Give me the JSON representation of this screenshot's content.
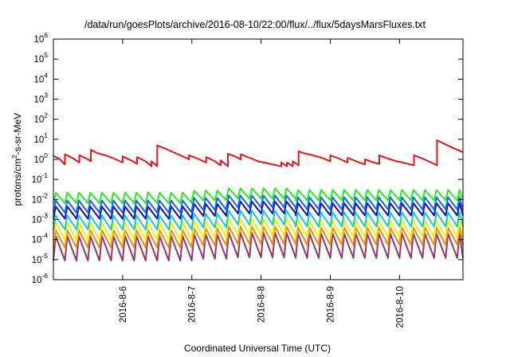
{
  "chart_data": {
    "type": "line",
    "title": "/data/run/goesPlots/archive/2016-08-10/22:00/flux/../flux/5daysMarsFluxes.txt",
    "xlabel": "Coordinated Universal Time (UTC)",
    "ylabel": {
      "base": "protons/cm",
      "sup": "2",
      "rest": "-s-sr-MeV"
    },
    "x_range": [
      "2016-08-05T00:00",
      "2016-08-10T22:00"
    ],
    "x_ticks": [
      "2016-8-6",
      "2016-8-7",
      "2016-8-8",
      "2016-8-9",
      "2016-8-10"
    ],
    "y_scale": "log",
    "ylim": [
      1e-06,
      1000000.0
    ],
    "y_ticks": [
      {
        "base": "10",
        "exp": "-6",
        "value": 1e-06
      },
      {
        "base": "10",
        "exp": "-5",
        "value": 1e-05
      },
      {
        "base": "10",
        "exp": "-4",
        "value": 0.0001
      },
      {
        "base": "10",
        "exp": "-3",
        "value": 0.001
      },
      {
        "base": "10",
        "exp": "-2",
        "value": 0.01
      },
      {
        "base": "10",
        "exp": "-1",
        "value": 0.1
      },
      {
        "base": "10",
        "exp": "0",
        "value": 1
      },
      {
        "base": "10",
        "exp": "1",
        "value": 10
      },
      {
        "base": "10",
        "exp": "2",
        "value": 100
      },
      {
        "base": "10",
        "exp": "3",
        "value": 1000
      },
      {
        "base": "10",
        "exp": "4",
        "value": 10000
      },
      {
        "base": "10",
        "exp": "5",
        "value": 100000
      },
      {
        "base": "10",
        "exp": "6",
        "value": 1000000
      }
    ],
    "grid": false,
    "legend": "none",
    "series": [
      {
        "color": "#ee1111",
        "points": [
          [
            "2016-08-05T00:00",
            1.5
          ],
          [
            "2016-08-05T02:00",
            1.1
          ],
          [
            "2016-08-05T04:00",
            0.55
          ],
          [
            "2016-08-05T04:00",
            1.8
          ],
          [
            "2016-08-05T06:30",
            1.2
          ],
          [
            "2016-08-05T09:00",
            0.7
          ],
          [
            "2016-08-05T09:00",
            1.6
          ],
          [
            "2016-08-05T11:30",
            1.1
          ],
          [
            "2016-08-05T13:00",
            0.8
          ],
          [
            "2016-08-05T13:00",
            3.0
          ],
          [
            "2016-08-05T15:00",
            2.1
          ],
          [
            "2016-08-05T18:00",
            1.6
          ],
          [
            "2016-08-05T21:00",
            1.1
          ],
          [
            "2016-08-06T00:00",
            0.7
          ],
          [
            "2016-08-06T00:00",
            1.4
          ],
          [
            "2016-08-06T03:00",
            0.9
          ],
          [
            "2016-08-06T05:00",
            0.6
          ],
          [
            "2016-08-06T05:00",
            1.3
          ],
          [
            "2016-08-06T08:00",
            0.8
          ],
          [
            "2016-08-06T10:00",
            0.45
          ],
          [
            "2016-08-06T10:00",
            0.8
          ],
          [
            "2016-08-06T12:00",
            0.45
          ],
          [
            "2016-08-06T12:00",
            5.0
          ],
          [
            "2016-08-06T14:00",
            3.8
          ],
          [
            "2016-08-06T17:00",
            2.5
          ],
          [
            "2016-08-06T20:00",
            1.6
          ],
          [
            "2016-08-06T23:00",
            1.0
          ],
          [
            "2016-08-06T23:00",
            1.6
          ],
          [
            "2016-08-07T02:00",
            1.1
          ],
          [
            "2016-08-07T05:00",
            0.7
          ],
          [
            "2016-08-07T05:00",
            1.3
          ],
          [
            "2016-08-07T08:00",
            0.8
          ],
          [
            "2016-08-07T10:00",
            0.5
          ],
          [
            "2016-08-07T10:00",
            0.9
          ],
          [
            "2016-08-07T12:30",
            0.45
          ],
          [
            "2016-08-07T12:30",
            1.9
          ],
          [
            "2016-08-07T15:00",
            1.4
          ],
          [
            "2016-08-07T17:00",
            1.0
          ],
          [
            "2016-08-07T17:00",
            1.8
          ],
          [
            "2016-08-07T20:00",
            1.2
          ],
          [
            "2016-08-07T23:00",
            0.8
          ],
          [
            "2016-08-08T03:00",
            0.6
          ],
          [
            "2016-08-08T07:00",
            0.45
          ],
          [
            "2016-08-08T07:00",
            0.7
          ],
          [
            "2016-08-08T09:00",
            0.45
          ],
          [
            "2016-08-08T09:00",
            0.7
          ],
          [
            "2016-08-08T11:00",
            0.45
          ],
          [
            "2016-08-08T11:00",
            0.8
          ],
          [
            "2016-08-08T13:00",
            0.5
          ],
          [
            "2016-08-08T13:00",
            2.5
          ],
          [
            "2016-08-08T15:00",
            2.0
          ],
          [
            "2016-08-08T18:00",
            1.6
          ],
          [
            "2016-08-08T21:00",
            1.2
          ],
          [
            "2016-08-09T00:00",
            0.8
          ],
          [
            "2016-08-09T00:00",
            1.6
          ],
          [
            "2016-08-09T03:00",
            1.1
          ],
          [
            "2016-08-09T06:00",
            0.7
          ],
          [
            "2016-08-09T06:00",
            1.2
          ],
          [
            "2016-08-09T09:00",
            0.8
          ],
          [
            "2016-08-09T12:00",
            0.55
          ],
          [
            "2016-08-09T12:00",
            1.0
          ],
          [
            "2016-08-09T15:00",
            0.7
          ],
          [
            "2016-08-09T17:00",
            0.6
          ],
          [
            "2016-08-09T17:00",
            1.6
          ],
          [
            "2016-08-09T20:00",
            1.1
          ],
          [
            "2016-08-09T23:00",
            0.8
          ],
          [
            "2016-08-10T02:00",
            0.65
          ],
          [
            "2016-08-10T05:00",
            0.5
          ],
          [
            "2016-08-10T05:00",
            1.6
          ],
          [
            "2016-08-10T08:00",
            1.1
          ],
          [
            "2016-08-10T11:00",
            0.7
          ],
          [
            "2016-08-10T13:00",
            0.5
          ],
          [
            "2016-08-10T13:00",
            9.0
          ],
          [
            "2016-08-10T16:00",
            5.5
          ],
          [
            "2016-08-10T19:00",
            3.5
          ],
          [
            "2016-08-10T22:00",
            2.3
          ]
        ]
      },
      {
        "color": "#22ee22",
        "shape": "sawtooth",
        "sawtooth": {
          "period_hours": 4,
          "rise_fraction": 0.2,
          "segments": [
            {
              "start": "2016-08-05T00:00",
              "end": "2016-08-07T00:00",
              "hi": 0.022,
              "lo": 0.0065
            },
            {
              "start": "2016-08-07T00:00",
              "end": "2016-08-07T14:00",
              "hi": 0.028,
              "lo": 0.009
            },
            {
              "start": "2016-08-07T14:00",
              "end": "2016-08-08T14:00",
              "hi": 0.036,
              "lo": 0.011
            },
            {
              "start": "2016-08-08T14:00",
              "end": "2016-08-10T22:00",
              "hi": 0.03,
              "lo": 0.009
            }
          ]
        }
      },
      {
        "color": "#1166ee",
        "shape": "sawtooth",
        "sawtooth": {
          "period_hours": 4,
          "rise_fraction": 0.2,
          "segments": [
            {
              "start": "2016-08-05T00:00",
              "end": "2016-08-07T00:00",
              "hi": 0.009,
              "lo": 0.0022
            },
            {
              "start": "2016-08-07T00:00",
              "end": "2016-08-07T14:00",
              "hi": 0.012,
              "lo": 0.003
            },
            {
              "start": "2016-08-07T14:00",
              "end": "2016-08-08T14:00",
              "hi": 0.016,
              "lo": 0.004
            },
            {
              "start": "2016-08-08T14:00",
              "end": "2016-08-10T22:00",
              "hi": 0.013,
              "lo": 0.0032
            }
          ]
        }
      },
      {
        "color": "#1111bb",
        "shape": "sawtooth",
        "sawtooth": {
          "period_hours": 4,
          "rise_fraction": 0.2,
          "segments": [
            {
              "start": "2016-08-05T00:00",
              "end": "2016-08-07T00:00",
              "hi": 0.0045,
              "lo": 0.0011
            },
            {
              "start": "2016-08-07T00:00",
              "end": "2016-08-07T14:00",
              "hi": 0.006,
              "lo": 0.0015
            },
            {
              "start": "2016-08-07T14:00",
              "end": "2016-08-08T14:00",
              "hi": 0.008,
              "lo": 0.002
            },
            {
              "start": "2016-08-08T14:00",
              "end": "2016-08-10T22:00",
              "hi": 0.0065,
              "lo": 0.0016
            }
          ]
        }
      },
      {
        "color": "#11cccc",
        "shape": "sawtooth",
        "sawtooth": {
          "period_hours": 4,
          "rise_fraction": 0.2,
          "segments": [
            {
              "start": "2016-08-05T00:00",
              "end": "2016-08-07T00:00",
              "hi": 0.0016,
              "lo": 0.00032
            },
            {
              "start": "2016-08-07T00:00",
              "end": "2016-08-07T14:00",
              "hi": 0.002,
              "lo": 0.0004
            },
            {
              "start": "2016-08-07T14:00",
              "end": "2016-08-08T14:00",
              "hi": 0.0028,
              "lo": 0.00055
            },
            {
              "start": "2016-08-08T14:00",
              "end": "2016-08-10T22:00",
              "hi": 0.0023,
              "lo": 0.00045
            }
          ]
        }
      },
      {
        "color": "#eeee11",
        "shape": "sawtooth",
        "sawtooth": {
          "period_hours": 4,
          "rise_fraction": 0.2,
          "segments": [
            {
              "start": "2016-08-05T00:00",
              "end": "2016-08-07T00:00",
              "hi": 0.0007,
              "lo": 0.0001
            },
            {
              "start": "2016-08-07T00:00",
              "end": "2016-08-07T14:00",
              "hi": 0.00085,
              "lo": 0.00013
            },
            {
              "start": "2016-08-07T14:00",
              "end": "2016-08-08T14:00",
              "hi": 0.0011,
              "lo": 0.00017
            },
            {
              "start": "2016-08-08T14:00",
              "end": "2016-08-10T22:00",
              "hi": 0.0009,
              "lo": 0.00014
            }
          ]
        }
      },
      {
        "color": "#ee8811",
        "shape": "sawtooth",
        "sawtooth": {
          "period_hours": 4,
          "rise_fraction": 0.2,
          "segments": [
            {
              "start": "2016-08-05T00:00",
              "end": "2016-08-07T00:00",
              "hi": 0.0003,
              "lo": 4e-05
            },
            {
              "start": "2016-08-07T00:00",
              "end": "2016-08-07T14:00",
              "hi": 0.00036,
              "lo": 5e-05
            },
            {
              "start": "2016-08-07T14:00",
              "end": "2016-08-08T14:00",
              "hi": 0.00045,
              "lo": 6e-05
            },
            {
              "start": "2016-08-08T14:00",
              "end": "2016-08-10T22:00",
              "hi": 0.0004,
              "lo": 5.5e-05
            }
          ]
        }
      },
      {
        "color": "#993366",
        "shape": "sawtooth",
        "sawtooth": {
          "period_hours": 4,
          "rise_fraction": 0.2,
          "segments": [
            {
              "start": "2016-08-05T00:00",
              "end": "2016-08-07T00:00",
              "hi": 0.00015,
              "lo": 9e-06
            },
            {
              "start": "2016-08-07T00:00",
              "end": "2016-08-07T14:00",
              "hi": 0.00018,
              "lo": 1.1e-05
            },
            {
              "start": "2016-08-07T14:00",
              "end": "2016-08-08T14:00",
              "hi": 0.00022,
              "lo": 1.3e-05
            },
            {
              "start": "2016-08-08T14:00",
              "end": "2016-08-10T22:00",
              "hi": 0.0002,
              "lo": 1.2e-05
            }
          ]
        }
      }
    ]
  }
}
